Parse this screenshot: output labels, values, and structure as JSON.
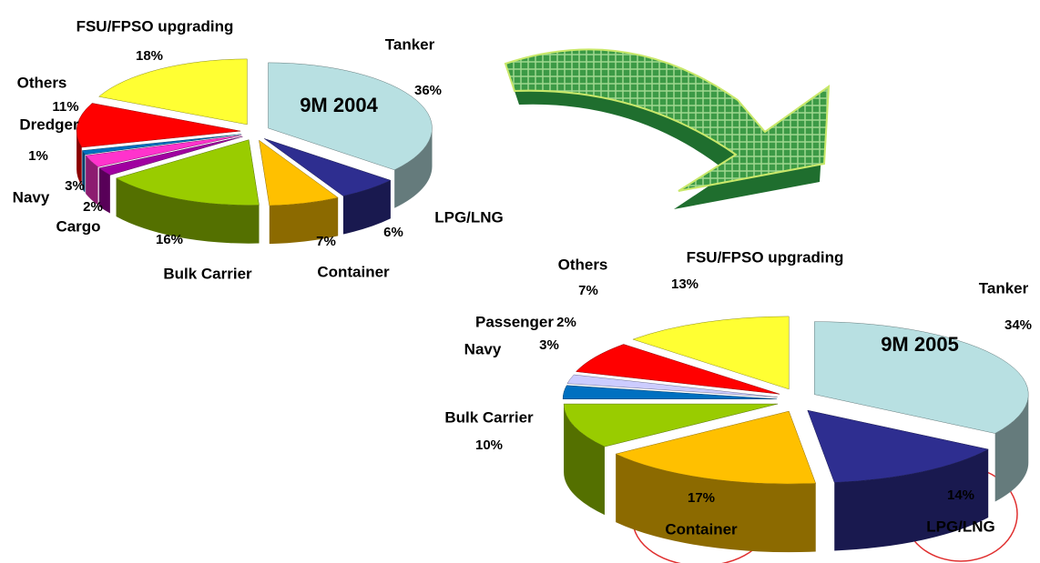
{
  "chart_data": [
    {
      "type": "pie",
      "title": "9M 2004",
      "categories": [
        "Tanker",
        "LPG/LNG",
        "Container",
        "Bulk Carrier",
        "Cargo",
        "Navy",
        "Dredger",
        "Others",
        "FSU/FPSO upgrading"
      ],
      "values": [
        36,
        6,
        7,
        16,
        2,
        3,
        1,
        11,
        18
      ],
      "value_labels": [
        "36%",
        "6%",
        "7%",
        "16%",
        "2%",
        "3%",
        "1%",
        "11%",
        "18%"
      ],
      "colors": [
        "#b8e0e2",
        "#2e2e90",
        "#ffc000",
        "#99cc00",
        "#a000a0",
        "#ff33cc",
        "#0070c0",
        "#ff0000",
        "#ffff33"
      ]
    },
    {
      "type": "pie",
      "title": "9M 2005",
      "categories": [
        "Tanker",
        "LPG/LNG",
        "Container",
        "Bulk Carrier",
        "Navy",
        "Passenger",
        "Others",
        "FSU/FPSO upgrading"
      ],
      "values": [
        34,
        14,
        17,
        10,
        3,
        2,
        7,
        13
      ],
      "value_labels": [
        "34%",
        "14%",
        "17%",
        "10%",
        "3%",
        "2%",
        "7%",
        "13%"
      ],
      "colors": [
        "#b8e0e2",
        "#2e2e90",
        "#ffc000",
        "#99cc00",
        "#0070c0",
        "#ccccff",
        "#ff0000",
        "#ffff33"
      ]
    }
  ]
}
